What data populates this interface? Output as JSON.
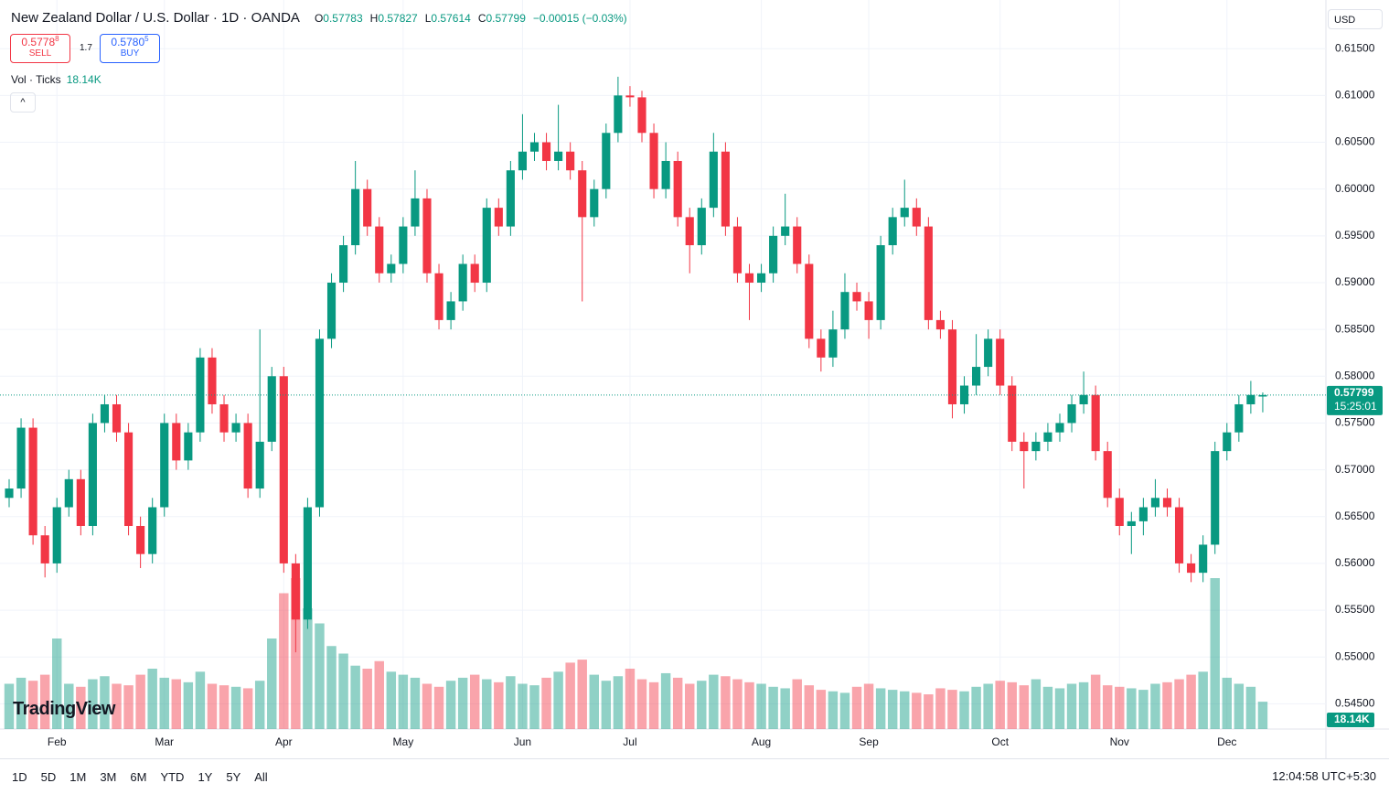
{
  "chart_data": {
    "type": "candlestick",
    "title": "New Zealand Dollar / U.S. Dollar · 1D · OANDA",
    "change": "−0.00015 (−0.03%)",
    "currency": "USD",
    "open": [
      0.567,
      0.568,
      0.5745,
      0.563,
      0.56,
      0.566,
      0.569,
      0.564,
      0.575,
      0.577,
      0.574,
      0.564,
      0.561,
      0.566,
      0.575,
      0.571,
      0.574,
      0.582,
      0.577,
      0.574,
      0.575,
      0.568,
      0.573,
      0.58,
      0.56,
      0.554,
      0.566,
      0.584,
      0.59,
      0.594,
      0.6,
      0.596,
      0.591,
      0.592,
      0.596,
      0.599,
      0.591,
      0.586,
      0.588,
      0.592,
      0.59,
      0.598,
      0.596,
      0.602,
      0.604,
      0.605,
      0.603,
      0.604,
      0.602,
      0.597,
      0.6,
      0.606,
      0.61,
      0.6098,
      0.606,
      0.6,
      0.603,
      0.597,
      0.594,
      0.598,
      0.604,
      0.596,
      0.591,
      0.59,
      0.591,
      0.595,
      0.596,
      0.592,
      0.584,
      0.582,
      0.585,
      0.589,
      0.588,
      0.586,
      0.594,
      0.597,
      0.598,
      0.596,
      0.586,
      0.585,
      0.577,
      0.579,
      0.581,
      0.584,
      0.579,
      0.573,
      0.572,
      0.573,
      0.574,
      0.575,
      0.577,
      0.578,
      0.572,
      0.567,
      0.564,
      0.5645,
      0.566,
      0.567,
      0.566,
      0.56,
      0.559,
      0.562,
      0.572,
      0.574,
      0.577,
      0.57783
    ],
    "high": [
      0.569,
      0.5755,
      0.5755,
      0.564,
      0.567,
      0.57,
      0.57,
      0.576,
      0.578,
      0.578,
      0.575,
      0.565,
      0.567,
      0.576,
      0.576,
      0.575,
      0.583,
      0.583,
      0.578,
      0.576,
      0.576,
      0.585,
      0.581,
      0.581,
      0.561,
      0.567,
      0.585,
      0.591,
      0.595,
      0.603,
      0.601,
      0.597,
      0.593,
      0.597,
      0.602,
      0.6,
      0.592,
      0.589,
      0.593,
      0.593,
      0.599,
      0.599,
      0.603,
      0.608,
      0.606,
      0.606,
      0.609,
      0.605,
      0.603,
      0.601,
      0.607,
      0.612,
      0.611,
      0.6105,
      0.607,
      0.605,
      0.604,
      0.598,
      0.599,
      0.606,
      0.605,
      0.597,
      0.592,
      0.592,
      0.596,
      0.5995,
      0.597,
      0.593,
      0.585,
      0.587,
      0.591,
      0.59,
      0.589,
      0.595,
      0.598,
      0.601,
      0.599,
      0.597,
      0.587,
      0.586,
      0.58,
      0.5845,
      0.585,
      0.585,
      0.58,
      0.574,
      0.574,
      0.575,
      0.576,
      0.578,
      0.5805,
      0.579,
      0.573,
      0.568,
      0.5655,
      0.567,
      0.569,
      0.568,
      0.567,
      0.561,
      0.563,
      0.573,
      0.575,
      0.578,
      0.5795,
      0.57827
    ],
    "low": [
      0.566,
      0.567,
      0.562,
      0.5585,
      0.559,
      0.565,
      0.563,
      0.563,
      0.574,
      0.573,
      0.563,
      0.5595,
      0.56,
      0.565,
      0.57,
      0.57,
      0.573,
      0.576,
      0.573,
      0.573,
      0.567,
      0.567,
      0.572,
      0.559,
      0.5505,
      0.553,
      0.565,
      0.583,
      0.589,
      0.593,
      0.595,
      0.59,
      0.59,
      0.591,
      0.595,
      0.59,
      0.585,
      0.585,
      0.587,
      0.589,
      0.589,
      0.595,
      0.595,
      0.601,
      0.603,
      0.602,
      0.602,
      0.601,
      0.588,
      0.596,
      0.599,
      0.605,
      0.6088,
      0.605,
      0.599,
      0.599,
      0.596,
      0.591,
      0.593,
      0.597,
      0.595,
      0.59,
      0.586,
      0.589,
      0.59,
      0.594,
      0.591,
      0.583,
      0.5805,
      0.581,
      0.584,
      0.587,
      0.584,
      0.585,
      0.593,
      0.596,
      0.595,
      0.585,
      0.584,
      0.5755,
      0.576,
      0.578,
      0.58,
      0.578,
      0.572,
      0.568,
      0.571,
      0.572,
      0.573,
      0.574,
      0.576,
      0.571,
      0.566,
      0.563,
      0.561,
      0.563,
      0.565,
      0.565,
      0.559,
      0.558,
      0.558,
      0.561,
      0.571,
      0.573,
      0.576,
      0.57614
    ],
    "close": [
      0.568,
      0.5745,
      0.563,
      0.56,
      0.566,
      0.569,
      0.564,
      0.575,
      0.577,
      0.574,
      0.564,
      0.561,
      0.566,
      0.575,
      0.571,
      0.574,
      0.582,
      0.577,
      0.574,
      0.575,
      0.568,
      0.573,
      0.58,
      0.56,
      0.554,
      0.566,
      0.584,
      0.59,
      0.594,
      0.6,
      0.596,
      0.591,
      0.592,
      0.596,
      0.599,
      0.591,
      0.586,
      0.588,
      0.592,
      0.59,
      0.598,
      0.596,
      0.602,
      0.604,
      0.605,
      0.603,
      0.604,
      0.602,
      0.597,
      0.6,
      0.606,
      0.61,
      0.6098,
      0.606,
      0.6,
      0.603,
      0.597,
      0.594,
      0.598,
      0.604,
      0.596,
      0.591,
      0.59,
      0.591,
      0.595,
      0.596,
      0.592,
      0.584,
      0.582,
      0.585,
      0.589,
      0.588,
      0.586,
      0.594,
      0.597,
      0.598,
      0.596,
      0.586,
      0.585,
      0.577,
      0.579,
      0.581,
      0.584,
      0.579,
      0.573,
      0.572,
      0.573,
      0.574,
      0.575,
      0.577,
      0.578,
      0.572,
      0.567,
      0.564,
      0.5645,
      0.566,
      0.567,
      0.566,
      0.56,
      0.559,
      0.562,
      0.572,
      0.574,
      0.577,
      0.578,
      0.57799
    ],
    "volume": [
      30,
      34,
      32,
      36,
      60,
      30,
      28,
      33,
      35,
      30,
      29,
      36,
      40,
      34,
      33,
      31,
      38,
      30,
      29,
      28,
      27,
      32,
      60,
      90,
      100,
      80,
      70,
      55,
      50,
      42,
      40,
      45,
      38,
      36,
      34,
      30,
      28,
      32,
      34,
      36,
      33,
      31,
      35,
      30,
      29,
      34,
      38,
      44,
      46,
      36,
      32,
      35,
      40,
      33,
      31,
      37,
      34,
      30,
      32,
      36,
      35,
      33,
      31,
      30,
      28,
      27,
      33,
      29,
      26,
      25,
      24,
      28,
      30,
      27,
      26,
      25,
      24,
      23,
      27,
      26,
      25,
      28,
      30,
      32,
      31,
      29,
      33,
      28,
      27,
      30,
      31,
      36,
      29,
      28,
      27,
      26,
      30,
      31,
      33,
      36,
      38,
      100,
      34,
      30,
      28,
      18.14
    ],
    "volume_title": "Vol · Ticks",
    "volume_last_label": "18.14K",
    "countdown": "15:25:01",
    "up_color": "#089981",
    "down_color": "#f23645",
    "ylim": [
      0.5423,
      0.6202
    ],
    "yticks": [
      {
        "value": 0.615,
        "label": "0.61500"
      },
      {
        "value": 0.61,
        "label": "0.61000"
      },
      {
        "value": 0.605,
        "label": "0.60500"
      },
      {
        "value": 0.6,
        "label": "0.60000"
      },
      {
        "value": 0.595,
        "label": "0.59500"
      },
      {
        "value": 0.59,
        "label": "0.59000"
      },
      {
        "value": 0.585,
        "label": "0.58500"
      },
      {
        "value": 0.58,
        "label": "0.58000"
      },
      {
        "value": 0.575,
        "label": "0.57500"
      },
      {
        "value": 0.57,
        "label": "0.57000"
      },
      {
        "value": 0.565,
        "label": "0.56500"
      },
      {
        "value": 0.56,
        "label": "0.56000"
      },
      {
        "value": 0.555,
        "label": "0.55500"
      },
      {
        "value": 0.55,
        "label": "0.55000"
      },
      {
        "value": 0.545,
        "label": "0.54500"
      }
    ],
    "xticks": [
      {
        "value": 4,
        "label": "Feb"
      },
      {
        "value": 13,
        "label": "Mar"
      },
      {
        "value": 23,
        "label": "Apr"
      },
      {
        "value": 33,
        "label": "May"
      },
      {
        "value": 43,
        "label": "Jun"
      },
      {
        "value": 52,
        "label": "Jul"
      },
      {
        "value": 63,
        "label": "Aug"
      },
      {
        "value": 72,
        "label": "Sep"
      },
      {
        "value": 83,
        "label": "Oct"
      },
      {
        "value": 93,
        "label": "Nov"
      },
      {
        "value": 102,
        "label": "Dec"
      }
    ],
    "grid": true
  },
  "trade": {
    "sell": {
      "price": "0.5778",
      "pipette": "8",
      "label": "SELL"
    },
    "spread": "1.7",
    "buy": {
      "price": "0.5780",
      "pipette": "5",
      "label": "BUY"
    }
  },
  "branding": "TradingView",
  "toolbar": {
    "ranges": [
      "1D",
      "5D",
      "1M",
      "3M",
      "6M",
      "YTD",
      "1Y",
      "5Y",
      "All"
    ],
    "clock": "12:04:58 UTC+5:30"
  }
}
